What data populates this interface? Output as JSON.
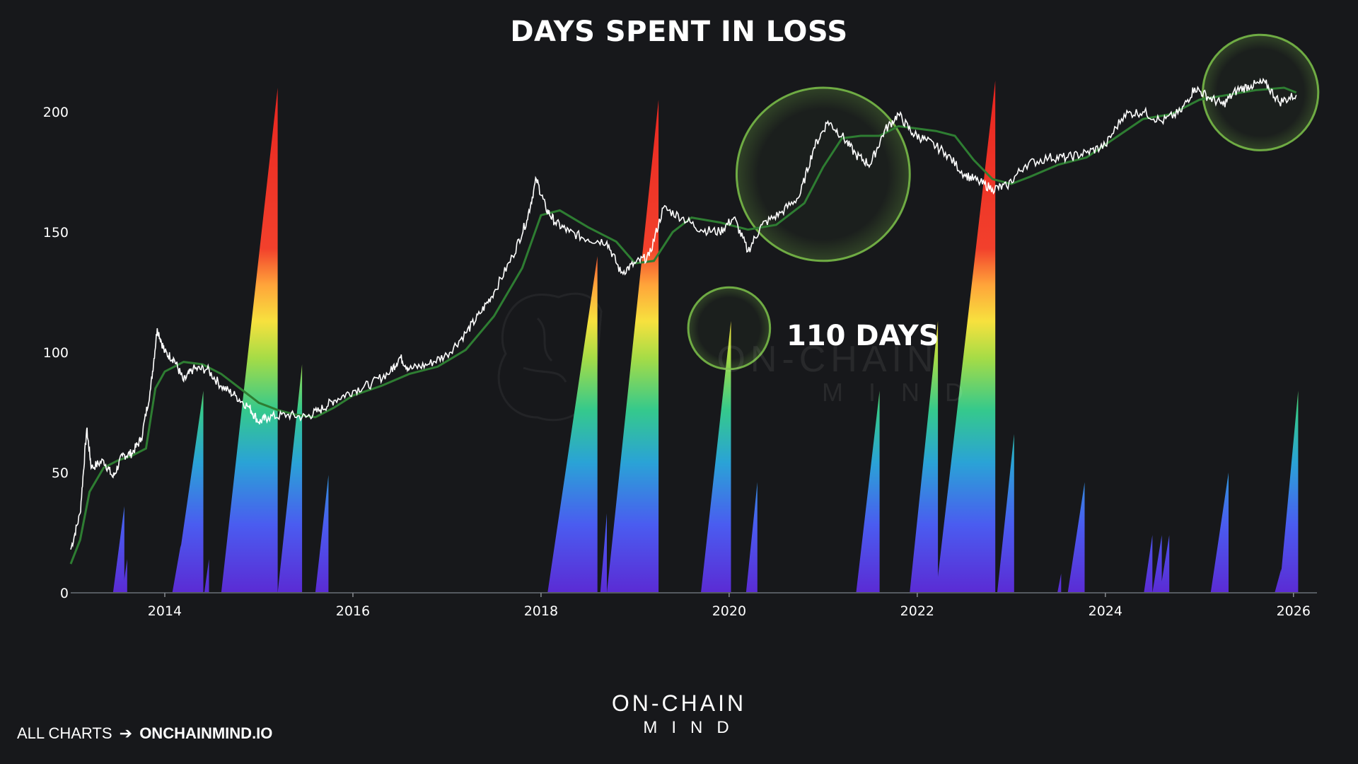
{
  "title": "DAYS SPENT IN LOSS",
  "annotation": "110 DAYS",
  "footer": {
    "prefix": "ALL CHARTS",
    "arrow": "➔",
    "site": "ONCHAINMIND.IO"
  },
  "brand": {
    "top": "ON-CHAIN",
    "bottom": "MIND"
  },
  "watermark": {
    "top": "ON-CHAIN",
    "bottom": "MIND"
  },
  "colors": {
    "background": "#17181b",
    "price_line": "#ffffff",
    "moving_average": "#2e7d32",
    "highlight_circle": "#7cc24a",
    "peak_red": "#e8231f"
  },
  "chart_data": {
    "type": "area",
    "title": "DAYS SPENT IN LOSS",
    "xlabel": "",
    "ylabel": "",
    "xlim": [
      2013.0,
      2026.25
    ],
    "ylim": [
      0,
      220
    ],
    "x_ticks": [
      "2014",
      "2016",
      "2018",
      "2020",
      "2022",
      "2024",
      "2026"
    ],
    "y_ticks": [
      "0",
      "50",
      "100",
      "150",
      "200"
    ],
    "grid": false,
    "legend": "none",
    "series": [
      {
        "kind": "days_in_loss_spikes",
        "spikes": [
          {
            "start": 2013.45,
            "end": 2013.57,
            "peak": 36
          },
          {
            "start": 2013.55,
            "end": 2013.6,
            "peak": 14
          },
          {
            "start": 2014.08,
            "end": 2014.17,
            "peak": 20
          },
          {
            "start": 2014.1,
            "end": 2014.41,
            "peak": 84
          },
          {
            "start": 2014.42,
            "end": 2014.47,
            "peak": 14
          },
          {
            "start": 2014.6,
            "end": 2015.2,
            "peak": 210
          },
          {
            "start": 2015.2,
            "end": 2015.46,
            "peak": 95
          },
          {
            "start": 2015.6,
            "end": 2015.74,
            "peak": 49
          },
          {
            "start": 2018.07,
            "end": 2018.6,
            "peak": 140
          },
          {
            "start": 2018.63,
            "end": 2018.7,
            "peak": 33
          },
          {
            "start": 2018.7,
            "end": 2019.25,
            "peak": 205
          },
          {
            "start": 2019.7,
            "end": 2020.02,
            "peak": 113
          },
          {
            "start": 2020.18,
            "end": 2020.3,
            "peak": 46
          },
          {
            "start": 2021.35,
            "end": 2021.6,
            "peak": 84
          },
          {
            "start": 2021.92,
            "end": 2022.22,
            "peak": 113
          },
          {
            "start": 2022.2,
            "end": 2022.83,
            "peak": 213
          },
          {
            "start": 2022.85,
            "end": 2023.03,
            "peak": 66
          },
          {
            "start": 2023.49,
            "end": 2023.53,
            "peak": 8
          },
          {
            "start": 2023.6,
            "end": 2023.78,
            "peak": 46
          },
          {
            "start": 2024.41,
            "end": 2024.5,
            "peak": 24
          },
          {
            "start": 2024.5,
            "end": 2024.6,
            "peak": 24
          },
          {
            "start": 2024.58,
            "end": 2024.68,
            "peak": 24
          },
          {
            "start": 2025.12,
            "end": 2025.31,
            "peak": 50
          },
          {
            "start": 2025.8,
            "end": 2025.87,
            "peak": 10
          },
          {
            "start": 2025.85,
            "end": 2026.05,
            "peak": 84
          }
        ]
      },
      {
        "kind": "price_overlay",
        "points": [
          [
            2013.0,
            18
          ],
          [
            2013.1,
            33
          ],
          [
            2013.17,
            68
          ],
          [
            2013.22,
            52
          ],
          [
            2013.35,
            55
          ],
          [
            2013.45,
            48
          ],
          [
            2013.55,
            57
          ],
          [
            2013.65,
            58
          ],
          [
            2013.75,
            64
          ],
          [
            2013.85,
            85
          ],
          [
            2013.92,
            110
          ],
          [
            2014.0,
            100
          ],
          [
            2014.1,
            97
          ],
          [
            2014.2,
            88
          ],
          [
            2014.3,
            93
          ],
          [
            2014.45,
            93
          ],
          [
            2014.6,
            86
          ],
          [
            2014.75,
            82
          ],
          [
            2014.9,
            77
          ],
          [
            2015.0,
            71
          ],
          [
            2015.1,
            73
          ],
          [
            2015.3,
            74
          ],
          [
            2015.5,
            73
          ],
          [
            2015.65,
            76
          ],
          [
            2015.8,
            80
          ],
          [
            2016.0,
            84
          ],
          [
            2016.2,
            87
          ],
          [
            2016.4,
            92
          ],
          [
            2016.5,
            98
          ],
          [
            2016.6,
            93
          ],
          [
            2016.8,
            95
          ],
          [
            2017.0,
            99
          ],
          [
            2017.2,
            108
          ],
          [
            2017.35,
            116
          ],
          [
            2017.5,
            125
          ],
          [
            2017.7,
            140
          ],
          [
            2017.85,
            155
          ],
          [
            2017.95,
            172
          ],
          [
            2018.05,
            160
          ],
          [
            2018.15,
            154
          ],
          [
            2018.3,
            150
          ],
          [
            2018.5,
            147
          ],
          [
            2018.7,
            146
          ],
          [
            2018.85,
            133
          ],
          [
            2019.0,
            137
          ],
          [
            2019.15,
            140
          ],
          [
            2019.3,
            160
          ],
          [
            2019.5,
            156
          ],
          [
            2019.7,
            151
          ],
          [
            2019.9,
            150
          ],
          [
            2020.05,
            156
          ],
          [
            2020.2,
            142
          ],
          [
            2020.35,
            153
          ],
          [
            2020.55,
            158
          ],
          [
            2020.75,
            165
          ],
          [
            2020.9,
            185
          ],
          [
            2021.05,
            196
          ],
          [
            2021.2,
            190
          ],
          [
            2021.35,
            182
          ],
          [
            2021.5,
            178
          ],
          [
            2021.65,
            192
          ],
          [
            2021.8,
            199
          ],
          [
            2021.95,
            191
          ],
          [
            2022.1,
            188
          ],
          [
            2022.3,
            183
          ],
          [
            2022.5,
            174
          ],
          [
            2022.65,
            171
          ],
          [
            2022.8,
            168
          ],
          [
            2022.95,
            169
          ],
          [
            2023.15,
            178
          ],
          [
            2023.4,
            181
          ],
          [
            2023.6,
            181
          ],
          [
            2023.8,
            183
          ],
          [
            2024.0,
            186
          ],
          [
            2024.2,
            199
          ],
          [
            2024.4,
            200
          ],
          [
            2024.6,
            196
          ],
          [
            2024.8,
            200
          ],
          [
            2024.95,
            210
          ],
          [
            2025.1,
            206
          ],
          [
            2025.25,
            203
          ],
          [
            2025.4,
            209
          ],
          [
            2025.55,
            211
          ],
          [
            2025.7,
            212
          ],
          [
            2025.85,
            204
          ],
          [
            2026.03,
            207
          ]
        ]
      },
      {
        "kind": "moving_average",
        "points": [
          [
            2013.0,
            12
          ],
          [
            2013.1,
            22
          ],
          [
            2013.2,
            42
          ],
          [
            2013.35,
            52
          ],
          [
            2013.5,
            55
          ],
          [
            2013.65,
            57
          ],
          [
            2013.8,
            60
          ],
          [
            2013.9,
            85
          ],
          [
            2014.0,
            92
          ],
          [
            2014.2,
            96
          ],
          [
            2014.4,
            95
          ],
          [
            2014.6,
            91
          ],
          [
            2014.8,
            85
          ],
          [
            2015.0,
            79
          ],
          [
            2015.2,
            76
          ],
          [
            2015.4,
            74
          ],
          [
            2015.6,
            73
          ],
          [
            2015.8,
            77
          ],
          [
            2016.0,
            82
          ],
          [
            2016.3,
            86
          ],
          [
            2016.6,
            91
          ],
          [
            2016.9,
            94
          ],
          [
            2017.2,
            101
          ],
          [
            2017.5,
            115
          ],
          [
            2017.8,
            135
          ],
          [
            2018.0,
            157
          ],
          [
            2018.2,
            159
          ],
          [
            2018.5,
            152
          ],
          [
            2018.8,
            146
          ],
          [
            2019.0,
            137
          ],
          [
            2019.2,
            138
          ],
          [
            2019.4,
            150
          ],
          [
            2019.6,
            156
          ],
          [
            2019.9,
            154
          ],
          [
            2020.2,
            151
          ],
          [
            2020.5,
            153
          ],
          [
            2020.8,
            162
          ],
          [
            2021.0,
            177
          ],
          [
            2021.2,
            189
          ],
          [
            2021.4,
            190
          ],
          [
            2021.6,
            190
          ],
          [
            2021.8,
            194
          ],
          [
            2022.0,
            193
          ],
          [
            2022.2,
            192
          ],
          [
            2022.4,
            190
          ],
          [
            2022.6,
            180
          ],
          [
            2022.8,
            172
          ],
          [
            2023.0,
            170
          ],
          [
            2023.2,
            173
          ],
          [
            2023.5,
            178
          ],
          [
            2023.8,
            181
          ],
          [
            2024.1,
            189
          ],
          [
            2024.4,
            197
          ],
          [
            2024.7,
            199
          ],
          [
            2025.0,
            205
          ],
          [
            2025.3,
            207
          ],
          [
            2025.6,
            209
          ],
          [
            2025.9,
            210
          ],
          [
            2026.03,
            208
          ]
        ]
      }
    ],
    "highlights": [
      {
        "x": 2020.0,
        "y": 110,
        "r_days": 17
      },
      {
        "x": 2021.0,
        "y": 174,
        "r_days": 36
      },
      {
        "x": 2025.65,
        "y": 208,
        "r_days": 24
      }
    ]
  }
}
